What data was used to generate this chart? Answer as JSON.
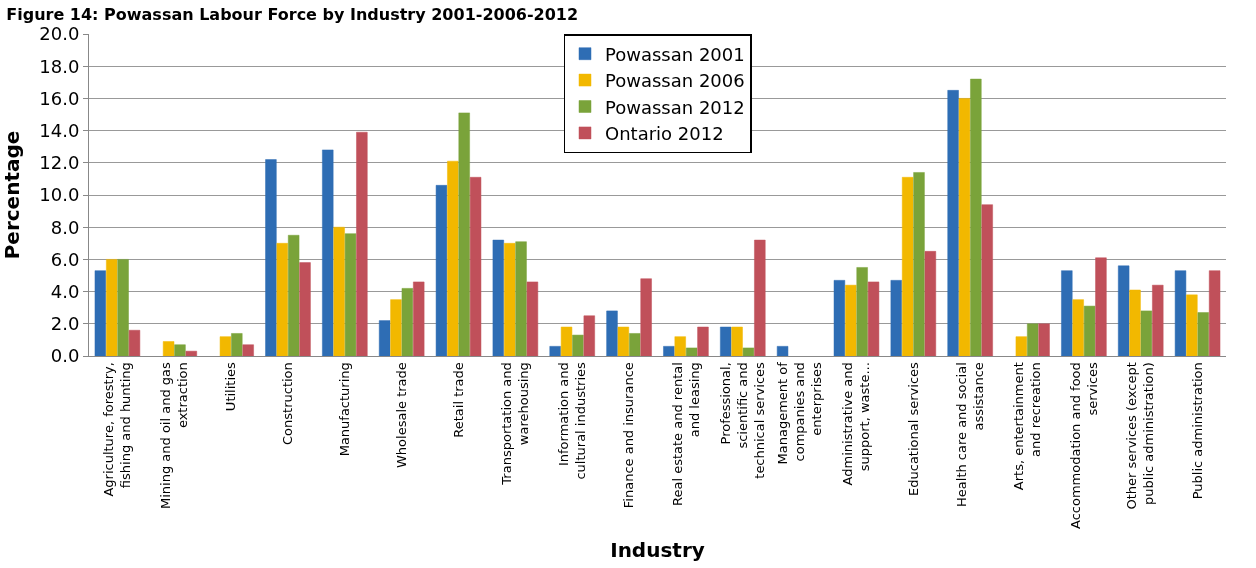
{
  "chart_data": {
    "type": "bar",
    "title": "Figure 14: Powassan Labour Force by Industry 2001-2006-2012",
    "xlabel": "Industry",
    "ylabel": "Percentage",
    "categories": [
      "Agriculture, forestry, fishing and hunting",
      "Mining and oil and gas extraction",
      "Utilities",
      "Construction",
      "Manufacturing",
      "Wholesale trade",
      "Retail trade",
      "Transportation and warehousing",
      "Information and cultural industries",
      "Finance and insurance",
      "Real estate and rental and leasing",
      "Professional, scientific and technical services",
      "Management of companies and enterprises",
      "Administrative and support, waste...",
      "Educational services",
      "Health care and social assistance",
      "Arts, entertainment and recreation",
      "Accommodation and food services",
      "Other services (except public administration)",
      "Public administration"
    ],
    "series": [
      {
        "name": "Powassan 2001",
        "color": "#2e6db4",
        "values": [
          5.3,
          null,
          null,
          12.2,
          12.8,
          2.2,
          10.6,
          7.2,
          0.6,
          2.8,
          0.6,
          1.8,
          0.6,
          4.7,
          4.7,
          16.5,
          null,
          5.3,
          5.6,
          5.3
        ]
      },
      {
        "name": "Powassan 2006",
        "color": "#f2b800",
        "values": [
          6.0,
          0.9,
          1.2,
          7.0,
          8.0,
          3.5,
          12.1,
          7.0,
          1.8,
          1.8,
          1.2,
          1.8,
          null,
          4.4,
          11.1,
          16.0,
          1.2,
          3.5,
          4.1,
          3.8
        ]
      },
      {
        "name": "Powassan 2012",
        "color": "#7aa33a",
        "values": [
          6.0,
          0.7,
          1.4,
          7.5,
          7.6,
          4.2,
          15.1,
          7.1,
          1.3,
          1.4,
          0.5,
          0.5,
          null,
          5.5,
          11.4,
          17.2,
          2.0,
          3.1,
          2.8,
          2.7
        ]
      },
      {
        "name": "Ontario 2012",
        "color": "#c0505a",
        "values": [
          1.6,
          0.3,
          0.7,
          5.8,
          13.9,
          4.6,
          11.1,
          4.6,
          2.5,
          4.8,
          1.8,
          7.2,
          null,
          4.6,
          6.5,
          9.4,
          2.0,
          6.1,
          4.4,
          5.3
        ]
      }
    ],
    "ylim": [
      0,
      20
    ],
    "yticks": [
      {
        "value": 0,
        "label": "0.0"
      },
      {
        "value": 2,
        "label": "2.0"
      },
      {
        "value": 4,
        "label": "4.0"
      },
      {
        "value": 6,
        "label": "6.0"
      },
      {
        "value": 8,
        "label": "8.0"
      },
      {
        "value": 10,
        "label": "10.0"
      },
      {
        "value": 12,
        "label": "12.0"
      },
      {
        "value": 14,
        "label": "14.0"
      },
      {
        "value": 16,
        "label": "16.0"
      },
      {
        "value": 18,
        "label": "18.0"
      },
      {
        "value": 20,
        "label": "20.0"
      }
    ],
    "grid": "y",
    "legend": "top"
  }
}
